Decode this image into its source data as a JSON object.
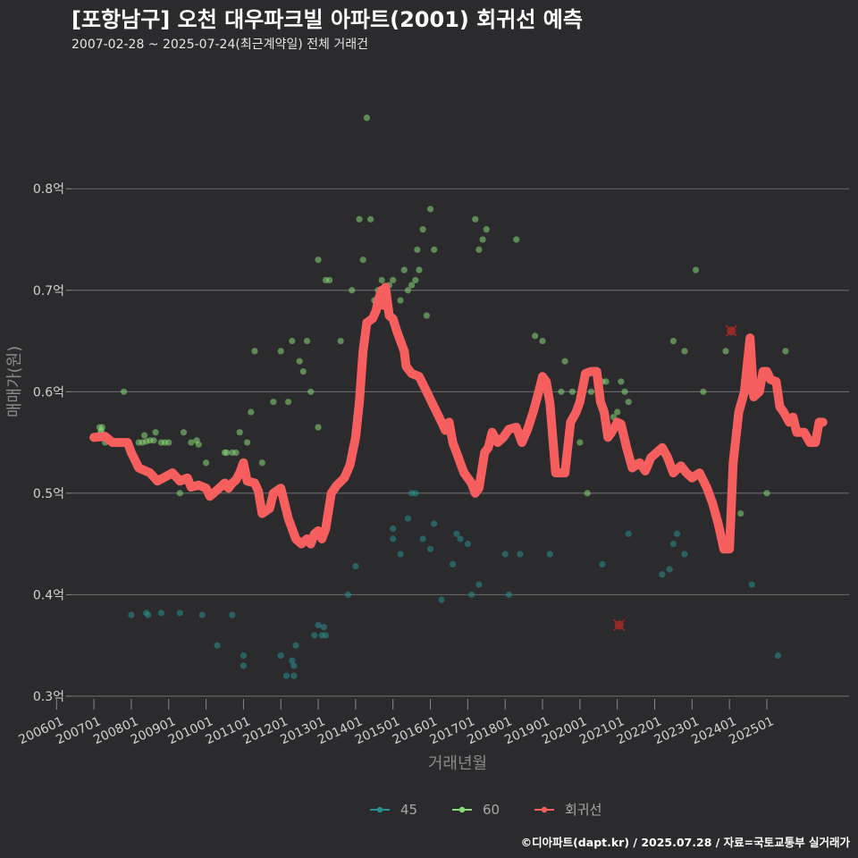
{
  "chart_data": {
    "type": "scatter",
    "title": "[포항남구] 오천 대우파크빌 아파트(2001) 회귀선 예측",
    "subtitle": "2007-02-28 ~ 2025-07-24(최근계약일) 전체 거래건",
    "xlabel": "거래년월",
    "ylabel": "매매가(원)",
    "caption": "©디아파트(dapt.kr) / 2025.07.28 / 자료=국토교통부 실거래가",
    "xlim": [
      2006.4,
      2027.2
    ],
    "ylim": [
      0.292,
      0.92
    ],
    "x_ticks": [
      2006,
      2007,
      2008,
      2009,
      2010,
      2011,
      2012,
      2013,
      2014,
      2015,
      2016,
      2017,
      2018,
      2019,
      2020,
      2021,
      2022,
      2023,
      2024,
      2025
    ],
    "x_tick_labels": [
      "200601",
      "200701",
      "200801",
      "200901",
      "201001",
      "201101",
      "201201",
      "201301",
      "201401",
      "201501",
      "201601",
      "201701",
      "201801",
      "201901",
      "202001",
      "202101",
      "202201",
      "202301",
      "202401",
      "202501"
    ],
    "y_ticks": [
      0.3,
      0.4,
      0.5,
      0.6,
      0.7,
      0.8
    ],
    "y_tick_labels": [
      "0.3억",
      "0.4억",
      "0.5억",
      "0.6억",
      "0.7억",
      "0.8억"
    ],
    "legend": [
      {
        "name": "45",
        "color": "#2a8f8f"
      },
      {
        "name": "60",
        "color": "#88d878"
      },
      {
        "name": "회귀선",
        "color": "#f75f5f"
      }
    ],
    "series": [
      {
        "name": "45",
        "color": "#2a8f8f",
        "points": [
          [
            2008.0,
            0.38
          ],
          [
            2008.4,
            0.382
          ],
          [
            2008.45,
            0.38
          ],
          [
            2008.8,
            0.382
          ],
          [
            2009.3,
            0.382
          ],
          [
            2009.9,
            0.38
          ],
          [
            2010.3,
            0.35
          ],
          [
            2010.7,
            0.38
          ],
          [
            2011.0,
            0.34
          ],
          [
            2011.0,
            0.33
          ],
          [
            2012.0,
            0.34
          ],
          [
            2012.15,
            0.32
          ],
          [
            2012.3,
            0.335
          ],
          [
            2012.35,
            0.33
          ],
          [
            2012.4,
            0.35
          ],
          [
            2012.35,
            0.32
          ],
          [
            2012.9,
            0.36
          ],
          [
            2013.0,
            0.37
          ],
          [
            2013.1,
            0.36
          ],
          [
            2013.15,
            0.368
          ],
          [
            2013.2,
            0.36
          ],
          [
            2013.8,
            0.4
          ],
          [
            2014.0,
            0.428
          ],
          [
            2015.0,
            0.465
          ],
          [
            2015.0,
            0.455
          ],
          [
            2015.2,
            0.44
          ],
          [
            2015.4,
            0.475
          ],
          [
            2015.5,
            0.5
          ],
          [
            2015.6,
            0.5
          ],
          [
            2015.8,
            0.455
          ],
          [
            2016.0,
            0.445
          ],
          [
            2016.1,
            0.47
          ],
          [
            2016.3,
            0.395
          ],
          [
            2016.6,
            0.43
          ],
          [
            2016.7,
            0.46
          ],
          [
            2016.8,
            0.455
          ],
          [
            2017.0,
            0.45
          ],
          [
            2017.1,
            0.4
          ],
          [
            2017.3,
            0.41
          ],
          [
            2018.0,
            0.44
          ],
          [
            2018.1,
            0.4
          ],
          [
            2018.4,
            0.44
          ],
          [
            2019.2,
            0.44
          ],
          [
            2020.6,
            0.43
          ],
          [
            2021.3,
            0.46
          ],
          [
            2022.2,
            0.42
          ],
          [
            2022.4,
            0.425
          ],
          [
            2022.5,
            0.45
          ],
          [
            2022.6,
            0.46
          ],
          [
            2022.8,
            0.44
          ],
          [
            2024.6,
            0.41
          ],
          [
            2025.3,
            0.34
          ]
        ]
      },
      {
        "name": "60",
        "color": "#88d878",
        "points": [
          [
            2007.1,
            0.555
          ],
          [
            2007.15,
            0.565
          ],
          [
            2007.18,
            0.56
          ],
          [
            2007.2,
            0.562
          ],
          [
            2007.22,
            0.565
          ],
          [
            2007.25,
            0.557
          ],
          [
            2007.3,
            0.55
          ],
          [
            2007.8,
            0.6
          ],
          [
            2008.2,
            0.55
          ],
          [
            2008.3,
            0.55
          ],
          [
            2008.35,
            0.557
          ],
          [
            2008.4,
            0.551
          ],
          [
            2008.5,
            0.552
          ],
          [
            2008.6,
            0.552
          ],
          [
            2008.65,
            0.56
          ],
          [
            2008.8,
            0.55
          ],
          [
            2008.9,
            0.55
          ],
          [
            2009.0,
            0.55
          ],
          [
            2009.3,
            0.5
          ],
          [
            2009.4,
            0.56
          ],
          [
            2009.6,
            0.55
          ],
          [
            2009.75,
            0.552
          ],
          [
            2009.8,
            0.548
          ],
          [
            2010.0,
            0.53
          ],
          [
            2010.5,
            0.54
          ],
          [
            2010.55,
            0.54
          ],
          [
            2010.7,
            0.54
          ],
          [
            2010.8,
            0.54
          ],
          [
            2010.9,
            0.56
          ],
          [
            2011.1,
            0.55
          ],
          [
            2011.2,
            0.58
          ],
          [
            2011.3,
            0.64
          ],
          [
            2011.5,
            0.53
          ],
          [
            2011.8,
            0.59
          ],
          [
            2012.0,
            0.64
          ],
          [
            2012.2,
            0.59
          ],
          [
            2012.3,
            0.65
          ],
          [
            2012.5,
            0.63
          ],
          [
            2012.6,
            0.62
          ],
          [
            2012.7,
            0.65
          ],
          [
            2012.8,
            0.6
          ],
          [
            2013.0,
            0.565
          ],
          [
            2013.0,
            0.73
          ],
          [
            2013.2,
            0.71
          ],
          [
            2013.3,
            0.71
          ],
          [
            2013.6,
            0.65
          ],
          [
            2013.9,
            0.7
          ],
          [
            2014.1,
            0.77
          ],
          [
            2014.2,
            0.73
          ],
          [
            2014.3,
            0.87
          ],
          [
            2014.4,
            0.77
          ],
          [
            2014.5,
            0.69
          ],
          [
            2014.6,
            0.7
          ],
          [
            2014.7,
            0.71
          ],
          [
            2014.75,
            0.7
          ],
          [
            2014.8,
            0.7
          ],
          [
            2014.85,
            0.69
          ],
          [
            2014.9,
            0.705
          ],
          [
            2015.0,
            0.71
          ],
          [
            2015.2,
            0.69
          ],
          [
            2015.3,
            0.72
          ],
          [
            2015.4,
            0.7
          ],
          [
            2015.5,
            0.705
          ],
          [
            2015.6,
            0.71
          ],
          [
            2015.65,
            0.74
          ],
          [
            2015.7,
            0.72
          ],
          [
            2015.8,
            0.76
          ],
          [
            2015.9,
            0.675
          ],
          [
            2016.0,
            0.78
          ],
          [
            2016.1,
            0.74
          ],
          [
            2017.2,
            0.77
          ],
          [
            2017.3,
            0.74
          ],
          [
            2017.4,
            0.75
          ],
          [
            2017.5,
            0.76
          ],
          [
            2018.3,
            0.75
          ],
          [
            2018.8,
            0.655
          ],
          [
            2018.9,
            0.605
          ],
          [
            2019.0,
            0.65
          ],
          [
            2019.5,
            0.6
          ],
          [
            2019.6,
            0.63
          ],
          [
            2019.8,
            0.6
          ],
          [
            2020.0,
            0.55
          ],
          [
            2020.2,
            0.5
          ],
          [
            2020.3,
            0.6
          ],
          [
            2020.6,
            0.61
          ],
          [
            2020.7,
            0.61
          ],
          [
            2020.9,
            0.575
          ],
          [
            2021.0,
            0.58
          ],
          [
            2021.1,
            0.61
          ],
          [
            2021.2,
            0.6
          ],
          [
            2021.3,
            0.59
          ],
          [
            2021.5,
            0.53
          ],
          [
            2022.5,
            0.65
          ],
          [
            2022.8,
            0.64
          ],
          [
            2023.1,
            0.72
          ],
          [
            2023.3,
            0.6
          ],
          [
            2023.9,
            0.64
          ],
          [
            2024.3,
            0.48
          ],
          [
            2024.5,
            0.6
          ],
          [
            2025.0,
            0.5
          ],
          [
            2025.5,
            0.64
          ]
        ]
      }
    ],
    "outliers": [
      [
        2021.05,
        0.37
      ],
      [
        2024.05,
        0.66
      ]
    ],
    "regression": [
      [
        2007.0,
        0.555
      ],
      [
        2007.3,
        0.556
      ],
      [
        2007.5,
        0.55
      ],
      [
        2007.9,
        0.55
      ],
      [
        2008.0,
        0.54
      ],
      [
        2008.2,
        0.525
      ],
      [
        2008.5,
        0.52
      ],
      [
        2008.7,
        0.512
      ],
      [
        2008.9,
        0.516
      ],
      [
        2009.1,
        0.52
      ],
      [
        2009.3,
        0.512
      ],
      [
        2009.5,
        0.515
      ],
      [
        2009.6,
        0.506
      ],
      [
        2009.8,
        0.508
      ],
      [
        2010.0,
        0.505
      ],
      [
        2010.1,
        0.497
      ],
      [
        2010.2,
        0.5
      ],
      [
        2010.35,
        0.505
      ],
      [
        2010.5,
        0.51
      ],
      [
        2010.6,
        0.505
      ],
      [
        2010.7,
        0.51
      ],
      [
        2010.8,
        0.513
      ],
      [
        2010.9,
        0.52
      ],
      [
        2011.0,
        0.53
      ],
      [
        2011.1,
        0.512
      ],
      [
        2011.3,
        0.51
      ],
      [
        2011.4,
        0.502
      ],
      [
        2011.5,
        0.48
      ],
      [
        2011.7,
        0.485
      ],
      [
        2011.8,
        0.5
      ],
      [
        2012.0,
        0.505
      ],
      [
        2012.2,
        0.475
      ],
      [
        2012.4,
        0.455
      ],
      [
        2012.55,
        0.45
      ],
      [
        2012.7,
        0.455
      ],
      [
        2012.8,
        0.45
      ],
      [
        2012.9,
        0.46
      ],
      [
        2013.0,
        0.463
      ],
      [
        2013.1,
        0.455
      ],
      [
        2013.2,
        0.465
      ],
      [
        2013.35,
        0.5
      ],
      [
        2013.5,
        0.508
      ],
      [
        2013.7,
        0.515
      ],
      [
        2013.85,
        0.528
      ],
      [
        2014.0,
        0.555
      ],
      [
        2014.1,
        0.59
      ],
      [
        2014.2,
        0.64
      ],
      [
        2014.3,
        0.668
      ],
      [
        2014.45,
        0.672
      ],
      [
        2014.55,
        0.68
      ],
      [
        2014.6,
        0.69
      ],
      [
        2014.7,
        0.7
      ],
      [
        2014.75,
        0.685
      ],
      [
        2014.8,
        0.703
      ],
      [
        2014.9,
        0.675
      ],
      [
        2015.0,
        0.672
      ],
      [
        2015.1,
        0.66
      ],
      [
        2015.3,
        0.64
      ],
      [
        2015.35,
        0.625
      ],
      [
        2015.5,
        0.618
      ],
      [
        2015.7,
        0.615
      ],
      [
        2015.9,
        0.6
      ],
      [
        2016.1,
        0.585
      ],
      [
        2016.3,
        0.57
      ],
      [
        2016.4,
        0.562
      ],
      [
        2016.5,
        0.57
      ],
      [
        2016.6,
        0.55
      ],
      [
        2016.75,
        0.535
      ],
      [
        2016.9,
        0.52
      ],
      [
        2017.1,
        0.51
      ],
      [
        2017.2,
        0.5
      ],
      [
        2017.3,
        0.505
      ],
      [
        2017.45,
        0.54
      ],
      [
        2017.55,
        0.545
      ],
      [
        2017.65,
        0.56
      ],
      [
        2017.8,
        0.55
      ],
      [
        2017.95,
        0.555
      ],
      [
        2018.1,
        0.563
      ],
      [
        2018.3,
        0.565
      ],
      [
        2018.45,
        0.55
      ],
      [
        2018.6,
        0.563
      ],
      [
        2018.75,
        0.58
      ],
      [
        2018.9,
        0.6
      ],
      [
        2019.0,
        0.615
      ],
      [
        2019.1,
        0.61
      ],
      [
        2019.2,
        0.588
      ],
      [
        2019.35,
        0.52
      ],
      [
        2019.45,
        0.52
      ],
      [
        2019.6,
        0.52
      ],
      [
        2019.75,
        0.57
      ],
      [
        2019.9,
        0.58
      ],
      [
        2020.0,
        0.59
      ],
      [
        2020.15,
        0.618
      ],
      [
        2020.3,
        0.62
      ],
      [
        2020.45,
        0.62
      ],
      [
        2020.55,
        0.59
      ],
      [
        2020.65,
        0.58
      ],
      [
        2020.75,
        0.555
      ],
      [
        2020.85,
        0.56
      ],
      [
        2021.0,
        0.57
      ],
      [
        2021.1,
        0.568
      ],
      [
        2021.25,
        0.545
      ],
      [
        2021.4,
        0.525
      ],
      [
        2021.6,
        0.53
      ],
      [
        2021.75,
        0.522
      ],
      [
        2021.9,
        0.535
      ],
      [
        2022.05,
        0.54
      ],
      [
        2022.2,
        0.545
      ],
      [
        2022.35,
        0.535
      ],
      [
        2022.5,
        0.52
      ],
      [
        2022.7,
        0.527
      ],
      [
        2022.85,
        0.52
      ],
      [
        2023.0,
        0.515
      ],
      [
        2023.2,
        0.52
      ],
      [
        2023.4,
        0.505
      ],
      [
        2023.55,
        0.49
      ],
      [
        2023.7,
        0.47
      ],
      [
        2023.85,
        0.445
      ],
      [
        2024.0,
        0.445
      ],
      [
        2024.1,
        0.53
      ],
      [
        2024.25,
        0.58
      ],
      [
        2024.4,
        0.6
      ],
      [
        2024.55,
        0.653
      ],
      [
        2024.65,
        0.595
      ],
      [
        2024.8,
        0.6
      ],
      [
        2024.9,
        0.62
      ],
      [
        2025.0,
        0.62
      ],
      [
        2025.1,
        0.612
      ],
      [
        2025.25,
        0.61
      ],
      [
        2025.35,
        0.585
      ],
      [
        2025.45,
        0.58
      ],
      [
        2025.6,
        0.57
      ],
      [
        2025.7,
        0.575
      ],
      [
        2025.8,
        0.56
      ],
      [
        2026.0,
        0.56
      ],
      [
        2026.15,
        0.55
      ],
      [
        2026.3,
        0.55
      ],
      [
        2026.4,
        0.57
      ],
      [
        2026.5,
        0.57
      ]
    ]
  }
}
